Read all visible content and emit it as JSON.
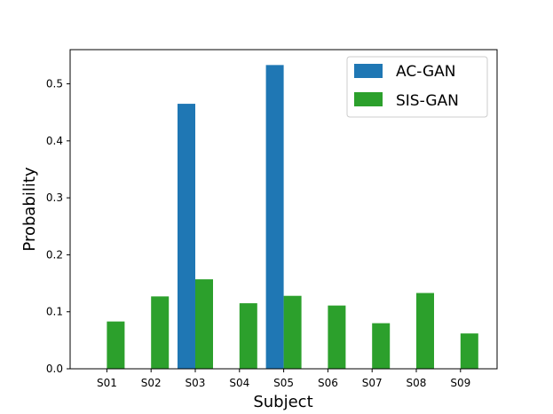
{
  "chart_data": {
    "type": "bar",
    "categories": [
      "S01",
      "S02",
      "S03",
      "S04",
      "S05",
      "S06",
      "S07",
      "S08",
      "S09"
    ],
    "series": [
      {
        "name": "AC-GAN",
        "color": "#1f77b4",
        "values": [
          0,
          0,
          0.465,
          0,
          0.533,
          0,
          0,
          0,
          0
        ]
      },
      {
        "name": "SIS-GAN",
        "color": "#2ca02c",
        "values": [
          0.083,
          0.127,
          0.157,
          0.115,
          0.128,
          0.111,
          0.08,
          0.133,
          0.062
        ]
      }
    ],
    "title": "",
    "xlabel": "Subject",
    "ylabel": "Probability",
    "ylim": [
      0,
      0.56
    ],
    "yticks": [
      0.0,
      0.1,
      0.2,
      0.3,
      0.4,
      0.5
    ],
    "ytick_labels": [
      "0.0",
      "0.1",
      "0.2",
      "0.3",
      "0.4",
      "0.5"
    ],
    "grid": false,
    "legend_position": "top-right"
  }
}
